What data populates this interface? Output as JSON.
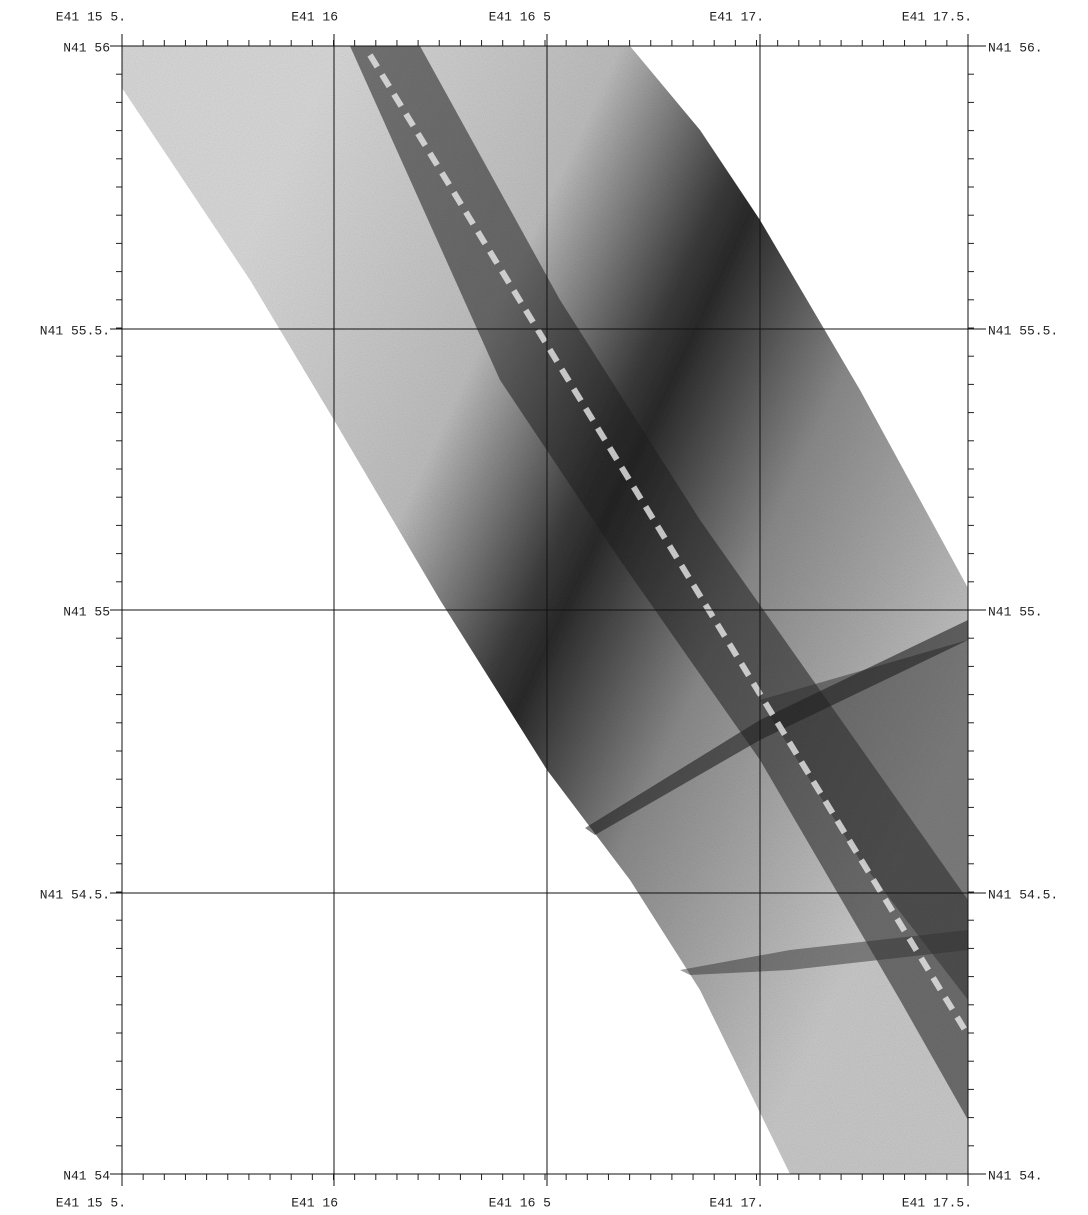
{
  "map": {
    "top_labels": [
      "E41 15 5.",
      "E41 16",
      "E41 16 5",
      "E41 17.",
      "E41 17.5."
    ],
    "bottom_labels": [
      "E41 15 5.",
      "E41 16",
      "E41 16 5",
      "E41 17.",
      "E41 17.5."
    ],
    "left_labels": [
      "N41 56",
      "N41 55.5.",
      "N41 55",
      "N41 54.5.",
      "N41 54"
    ],
    "right_labels": [
      "N41 56.",
      "N41 55.5.",
      "N41 55.",
      "N41 54.5.",
      "N41 54."
    ]
  }
}
